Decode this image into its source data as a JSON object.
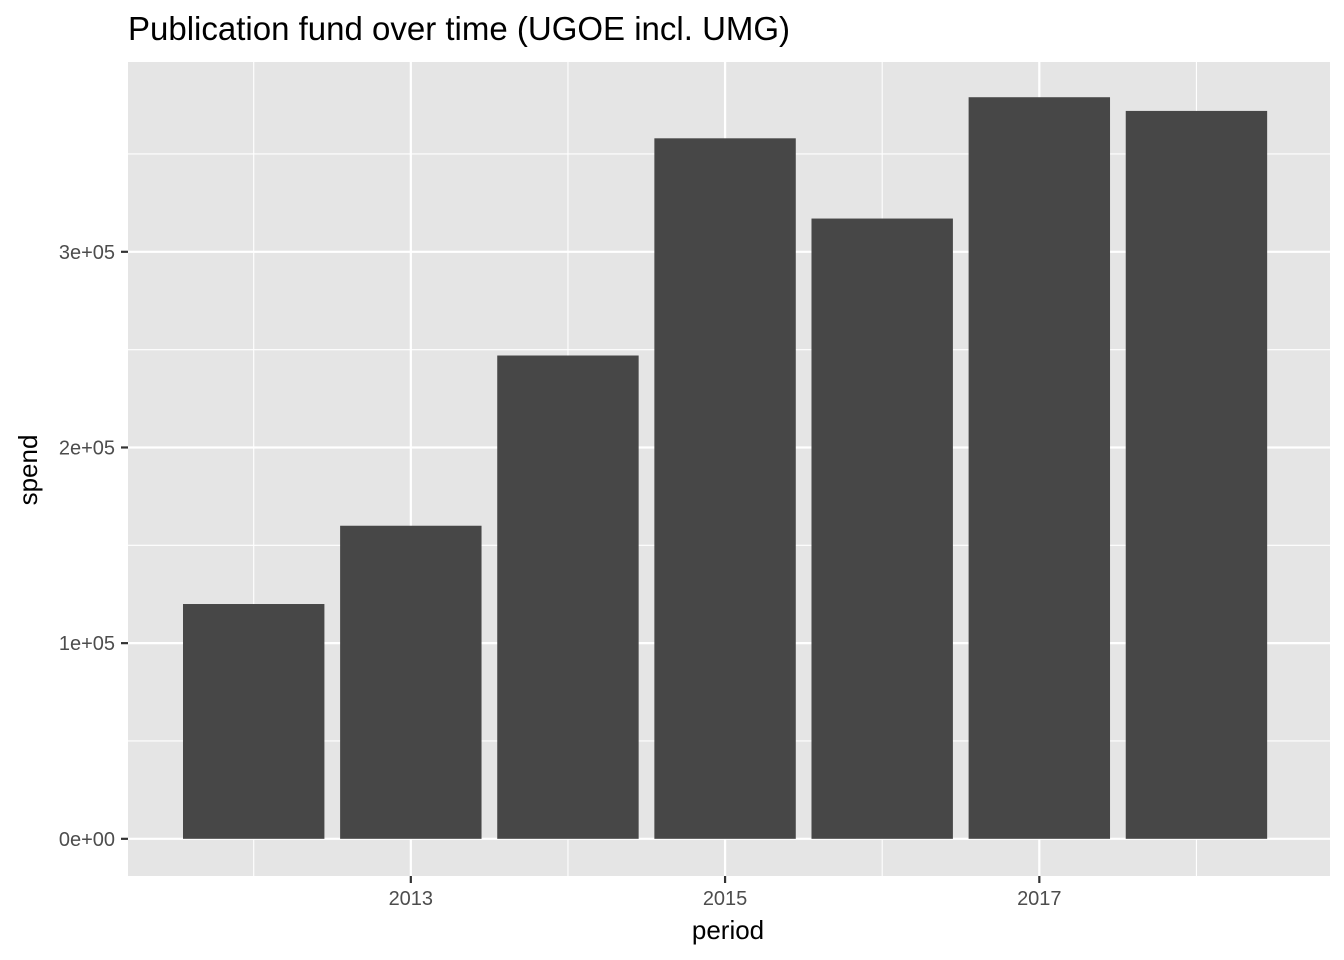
{
  "chart_data": {
    "type": "bar",
    "title": "Publication fund over time (UGOE incl. UMG)",
    "xlabel": "period",
    "ylabel": "spend",
    "x": [
      2012,
      2013,
      2014,
      2015,
      2016,
      2017,
      2018
    ],
    "values": [
      120000,
      160000,
      247000,
      358000,
      317000,
      379000,
      372000
    ],
    "x_ticks": [
      2013,
      2015,
      2017
    ],
    "x_tick_labels": [
      "2013",
      "2015",
      "2017"
    ],
    "y_ticks": [
      0,
      100000,
      200000,
      300000
    ],
    "y_tick_labels": [
      "0e+00",
      "1e+05",
      "2e+05",
      "3e+05"
    ],
    "xlim": [
      2011.2,
      2018.85
    ],
    "ylim": [
      -19000,
      397000
    ],
    "grid": true,
    "legend": "none",
    "colors": {
      "bar": "#474747",
      "panel": "#e5e5e5",
      "grid": "#ffffff"
    }
  }
}
